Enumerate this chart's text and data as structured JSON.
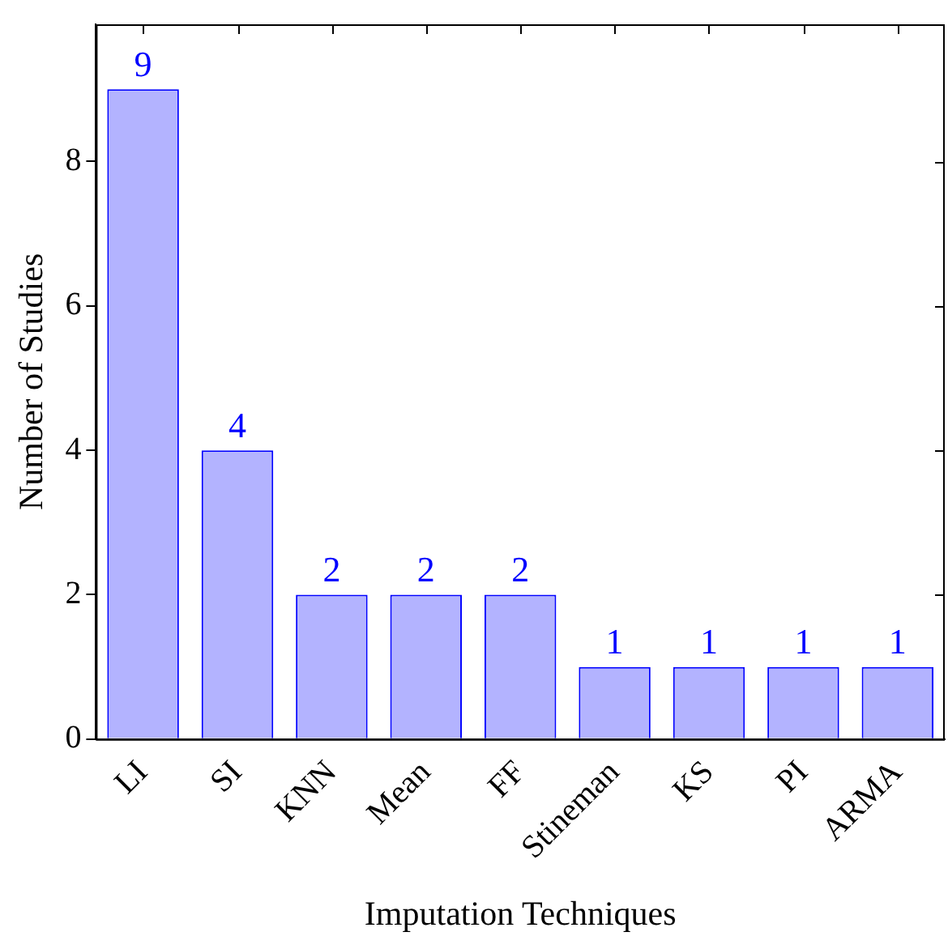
{
  "chart_data": {
    "type": "bar",
    "xlabel": "Imputation Techniques",
    "ylabel": "Number of Studies",
    "categories": [
      "LI",
      "SI",
      "KNN",
      "Mean",
      "FF",
      "Stineman",
      "KS",
      "PI",
      "ARMA"
    ],
    "values": [
      9,
      4,
      2,
      2,
      2,
      1,
      1,
      1,
      1
    ],
    "color": "#b3b3ff",
    "ylim": [
      0,
      9.9
    ],
    "yticks": [
      0,
      2,
      4,
      6,
      8
    ],
    "grid": false,
    "legend": false,
    "data_labels": true
  }
}
